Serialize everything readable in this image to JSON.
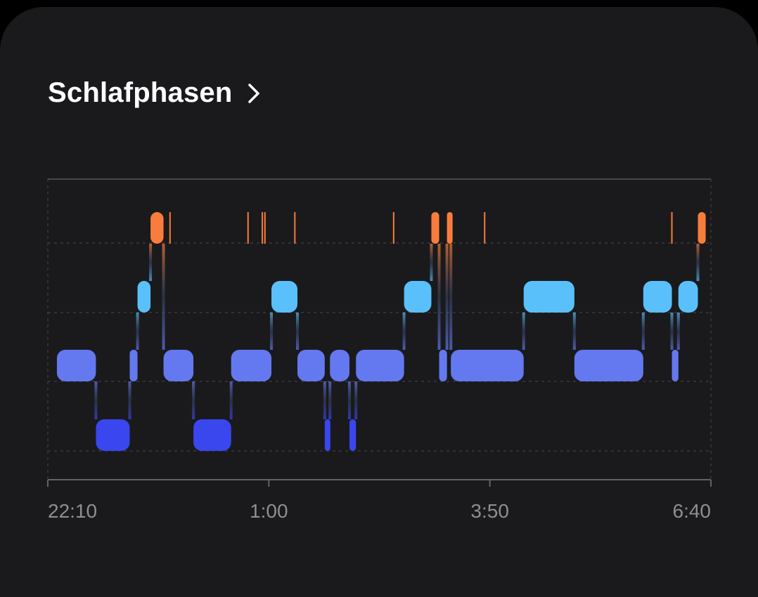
{
  "header": {
    "title": "Schlafphasen",
    "chevron_icon": "chevron-right-icon"
  },
  "chart_data": {
    "type": "timeline",
    "title": "Schlafphasen",
    "x_unit": "minutes since 22:10",
    "xlim": [
      0,
      510
    ],
    "x_ticks": [
      {
        "value": 0,
        "label": "22:10"
      },
      {
        "value": 170,
        "label": "1:00"
      },
      {
        "value": 340,
        "label": "3:50"
      },
      {
        "value": 510,
        "label": "6:40"
      }
    ],
    "levels": 4,
    "level_colors": [
      "#3a46ee",
      "#6478f0",
      "#5ac0fc",
      "#f97c3c"
    ],
    "segments": [
      {
        "level": 1,
        "start": 7,
        "end": 37
      },
      {
        "level": 0,
        "start": 37,
        "end": 63
      },
      {
        "level": 1,
        "start": 63,
        "end": 69
      },
      {
        "level": 2,
        "start": 69,
        "end": 79
      },
      {
        "level": 3,
        "start": 79,
        "end": 89
      },
      {
        "level": 1,
        "start": 89,
        "end": 112
      },
      {
        "level": 0,
        "start": 112,
        "end": 141
      },
      {
        "level": 1,
        "start": 141,
        "end": 172
      },
      {
        "level": 2,
        "start": 172,
        "end": 192
      },
      {
        "level": 1,
        "start": 192,
        "end": 213
      },
      {
        "level": 0,
        "start": 213,
        "end": 217
      },
      {
        "level": 1,
        "start": 217,
        "end": 232
      },
      {
        "level": 0,
        "start": 232,
        "end": 237
      },
      {
        "level": 1,
        "start": 237,
        "end": 274
      },
      {
        "level": 2,
        "start": 274,
        "end": 295
      },
      {
        "level": 3,
        "start": 295,
        "end": 301
      },
      {
        "level": 1,
        "start": 301,
        "end": 307
      },
      {
        "level": 3,
        "start": 307,
        "end": 310
      },
      {
        "level": 1,
        "start": 310,
        "end": 366
      },
      {
        "level": 2,
        "start": 366,
        "end": 405
      },
      {
        "level": 1,
        "start": 405,
        "end": 458
      },
      {
        "level": 2,
        "start": 458,
        "end": 480
      },
      {
        "level": 1,
        "start": 480,
        "end": 485
      },
      {
        "level": 2,
        "start": 485,
        "end": 500
      },
      {
        "level": 3,
        "start": 500,
        "end": 506
      }
    ],
    "awake_marks": [
      94,
      154,
      165,
      167,
      190,
      266,
      336,
      480
    ]
  }
}
